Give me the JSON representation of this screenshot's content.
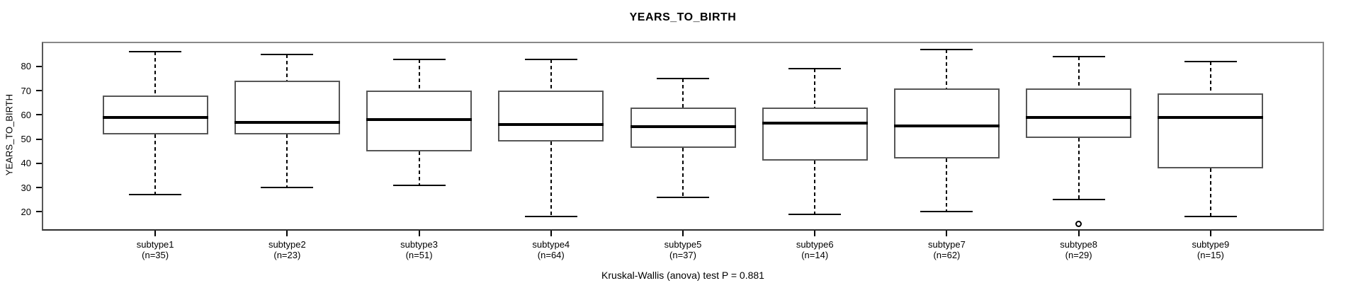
{
  "title": "YEARS_TO_BIRTH",
  "footer": {
    "annotation": "Kruskal-Wallis (anova) test P = 0.881"
  },
  "chart_data": {
    "type": "boxplot",
    "title": "YEARS_TO_BIRTH",
    "ylabel": "YEARS_TO_BIRTH",
    "xlabel": "",
    "yticks": [
      20,
      30,
      40,
      50,
      60,
      70,
      80
    ],
    "ylim": [
      12.2,
      90.2
    ],
    "grid": false,
    "legend": "none",
    "categories": [
      "subtype1",
      "subtype2",
      "subtype3",
      "subtype4",
      "subtype5",
      "subtype6",
      "subtype7",
      "subtype8",
      "subtype9"
    ],
    "groups": [
      {
        "label": "subtype1",
        "sublabel": "(n=35)",
        "n": 35,
        "low": 27,
        "q1": 52,
        "median": 59,
        "q3": 68,
        "high": 86,
        "outliers": []
      },
      {
        "label": "subtype2",
        "sublabel": "(n=23)",
        "n": 23,
        "low": 30,
        "q1": 52,
        "median": 57,
        "q3": 74,
        "high": 85,
        "outliers": []
      },
      {
        "label": "subtype3",
        "sublabel": "(n=51)",
        "n": 51,
        "low": 31,
        "q1": 45,
        "median": 58,
        "q3": 70,
        "high": 83,
        "outliers": []
      },
      {
        "label": "subtype4",
        "sublabel": "(n=64)",
        "n": 64,
        "low": 18,
        "q1": 49,
        "median": 56,
        "q3": 70,
        "high": 83,
        "outliers": []
      },
      {
        "label": "subtype5",
        "sublabel": "(n=37)",
        "n": 37,
        "low": 26,
        "q1": 46.5,
        "median": 55,
        "q3": 63,
        "high": 75,
        "outliers": []
      },
      {
        "label": "subtype6",
        "sublabel": "(n=14)",
        "n": 14,
        "low": 19,
        "q1": 41,
        "median": 56.5,
        "q3": 63,
        "high": 79,
        "outliers": []
      },
      {
        "label": "subtype7",
        "sublabel": "(n=62)",
        "n": 62,
        "low": 20,
        "q1": 42,
        "median": 55.5,
        "q3": 71,
        "high": 87,
        "outliers": []
      },
      {
        "label": "subtype8",
        "sublabel": "(n=29)",
        "n": 29,
        "low": 25,
        "q1": 50.5,
        "median": 59,
        "q3": 71,
        "high": 84,
        "outliers": [
          15
        ]
      },
      {
        "label": "subtype9",
        "sublabel": "(n=15)",
        "n": 15,
        "low": 18,
        "q1": 38,
        "median": 59,
        "q3": 69,
        "high": 82,
        "outliers": []
      }
    ],
    "annotation": "Kruskal-Wallis (anova) test P = 0.881",
    "colors": {
      "line": "#000000",
      "box_border": "#565656",
      "frame": "#898989",
      "background": "#ffffff",
      "text": "#000000"
    }
  }
}
